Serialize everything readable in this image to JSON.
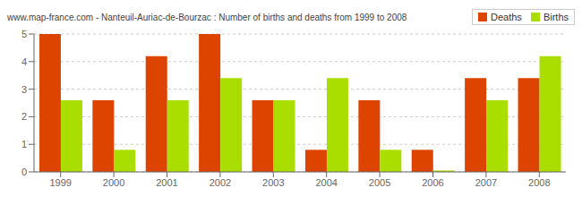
{
  "chart_data": {
    "type": "bar",
    "title": "www.map-france.com - Nanteuil-Auriac-de-Bourzac : Number of births and deaths from 1999 to 2008",
    "categories": [
      "1999",
      "2000",
      "2001",
      "2002",
      "2003",
      "2004",
      "2005",
      "2006",
      "2007",
      "2008"
    ],
    "series": [
      {
        "name": "Deaths",
        "color": "#dd4400",
        "values": [
          5.0,
          2.6,
          4.2,
          5.0,
          2.6,
          0.8,
          2.6,
          0.8,
          3.4,
          3.4
        ]
      },
      {
        "name": "Births",
        "color": "#aadd00",
        "values": [
          2.6,
          0.8,
          2.6,
          3.4,
          2.6,
          3.4,
          0.8,
          0.05,
          2.6,
          4.2
        ]
      }
    ],
    "ylim": [
      0,
      5
    ],
    "yticks": [
      0,
      1,
      2,
      3,
      4,
      5
    ],
    "grid": true,
    "legend": "upper right"
  }
}
